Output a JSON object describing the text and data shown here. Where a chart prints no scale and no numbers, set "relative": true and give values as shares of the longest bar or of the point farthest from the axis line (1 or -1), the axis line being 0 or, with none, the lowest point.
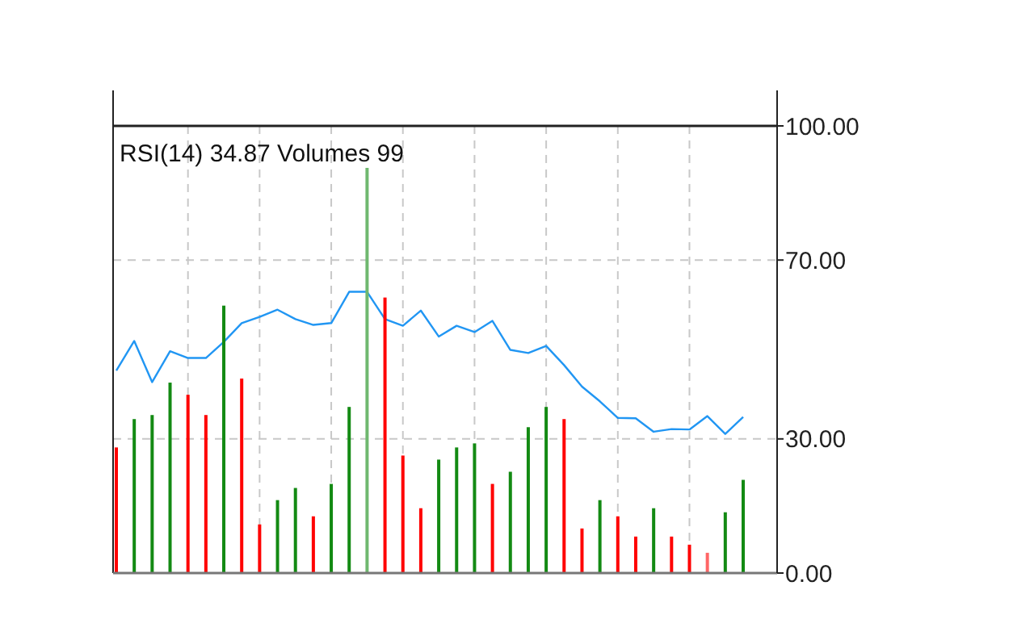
{
  "chart_data": [
    {
      "type": "line",
      "title": "RSI(14) 34.87 Volumes 99",
      "categories": [
        null,
        null,
        null,
        null,
        null,
        null,
        null,
        null,
        null,
        null,
        null,
        null,
        null,
        null,
        null,
        null,
        null,
        null,
        null,
        null,
        null,
        null,
        null,
        null,
        null,
        null,
        null,
        null,
        null,
        null,
        null,
        null,
        null,
        null,
        null,
        null
      ],
      "series": [
        {
          "color": "#2196f3",
          "values": [
            45.3,
            51.9,
            42.7,
            49.6,
            48.1,
            48.1,
            51.7,
            55.9,
            57.3,
            58.9,
            56.8,
            55.5,
            55.9,
            62.9,
            62.9,
            56.8,
            55.3,
            58.7,
            52.9,
            55.3,
            53.9,
            56.4,
            49.9,
            49.2,
            50.8,
            46.5,
            41.7,
            38.4,
            34.7,
            34.6,
            31.6,
            32.2,
            32.1,
            35.1,
            31.1,
            34.9
          ]
        }
      ],
      "ylim": [
        0,
        100
      ],
      "yticks": [
        {
          "value": 0,
          "label": "0.00"
        },
        {
          "value": 30,
          "label": "30.00"
        },
        {
          "value": 70,
          "label": "70.00"
        },
        {
          "value": 100,
          "label": "100.00"
        }
      ],
      "tick_labels": "y",
      "grid": true
    },
    {
      "type": "bar",
      "relative": true,
      "categories": [
        null,
        null,
        null,
        null,
        null,
        null,
        null,
        null,
        null,
        null,
        null,
        null,
        null,
        null,
        null,
        null,
        null,
        null,
        null,
        null,
        null,
        null,
        null,
        null,
        null,
        null,
        null,
        null,
        null,
        null,
        null,
        null,
        null,
        null,
        null,
        null
      ],
      "values": [
        0.31,
        0.38,
        0.39,
        0.47,
        0.44,
        0.39,
        0.66,
        0.48,
        0.12,
        0.18,
        0.21,
        0.14,
        0.22,
        0.41,
        1,
        0.68,
        0.29,
        0.16,
        0.28,
        0.31,
        0.32,
        0.22,
        0.25,
        0.36,
        0.41,
        0.38,
        0.11,
        0.18,
        0.14,
        0.09,
        0.16,
        0.09,
        0.07,
        0.05,
        0.15,
        0.23
      ],
      "colors": [
        "#ff0000",
        "#138a13",
        "#138a13",
        "#138a13",
        "#ff0000",
        "#ff0000",
        "#138a13",
        "#ff0000",
        "#ff0000",
        "#138a13",
        "#138a13",
        "#ff0000",
        "#138a13",
        "#138a13",
        "#6fb86f",
        "#ff0000",
        "#ff0000",
        "#ff0000",
        "#138a13",
        "#138a13",
        "#138a13",
        "#ff0000",
        "#138a13",
        "#138a13",
        "#138a13",
        "#ff0000",
        "#ff0000",
        "#138a13",
        "#ff0000",
        "#ff0000",
        "#138a13",
        "#ff0000",
        "#ff0000",
        "#ff6666",
        "#138a13",
        "#138a13"
      ]
    }
  ]
}
